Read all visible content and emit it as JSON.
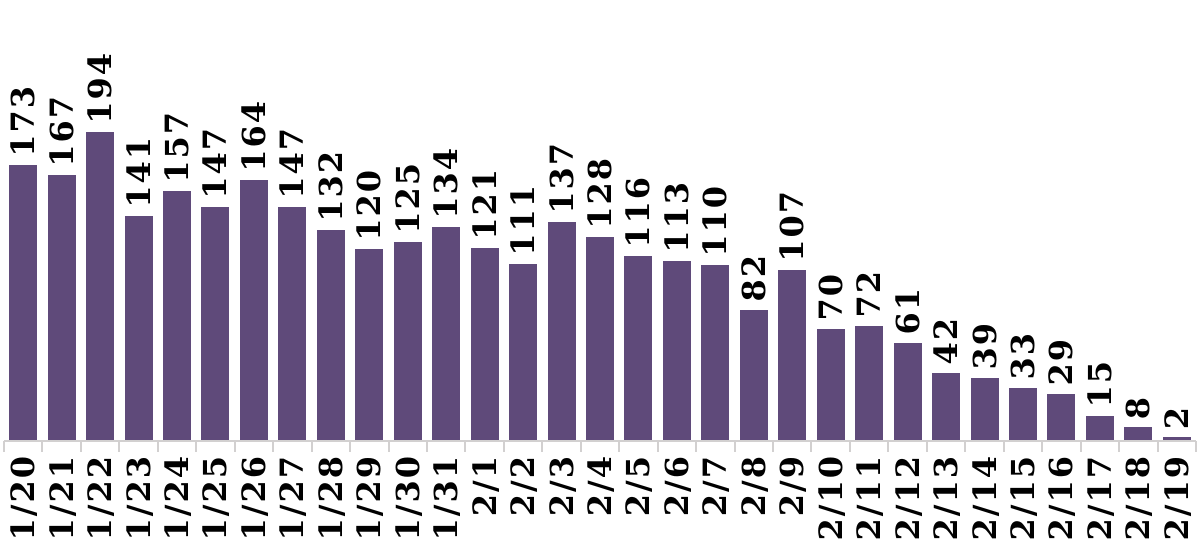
{
  "chart_data": {
    "type": "bar",
    "categories": [
      "1/20",
      "1/21",
      "1/22",
      "1/23",
      "1/24",
      "1/25",
      "1/26",
      "1/27",
      "1/28",
      "1/29",
      "1/30",
      "1/31",
      "2/1",
      "2/2",
      "2/3",
      "2/4",
      "2/5",
      "2/6",
      "2/7",
      "2/8",
      "2/9",
      "2/10",
      "2/11",
      "2/12",
      "2/13",
      "2/14",
      "2/15",
      "2/16",
      "2/17",
      "2/18",
      "2/19"
    ],
    "values": [
      173,
      167,
      194,
      141,
      157,
      147,
      164,
      147,
      132,
      120,
      125,
      134,
      121,
      111,
      137,
      128,
      116,
      113,
      110,
      82,
      107,
      70,
      72,
      61,
      42,
      39,
      33,
      29,
      15,
      8,
      2
    ],
    "title": "",
    "xlabel": "",
    "ylabel": "",
    "data_labels_shown": true,
    "data_label_rotation_deg": 90,
    "x_tick_label_rotation_deg": 90,
    "grid": false,
    "legend": false,
    "y_axis_shown": false,
    "bar_color": "#5F4A7A",
    "axis_line_color": "#D2D0D0",
    "label_color": "#000000"
  }
}
